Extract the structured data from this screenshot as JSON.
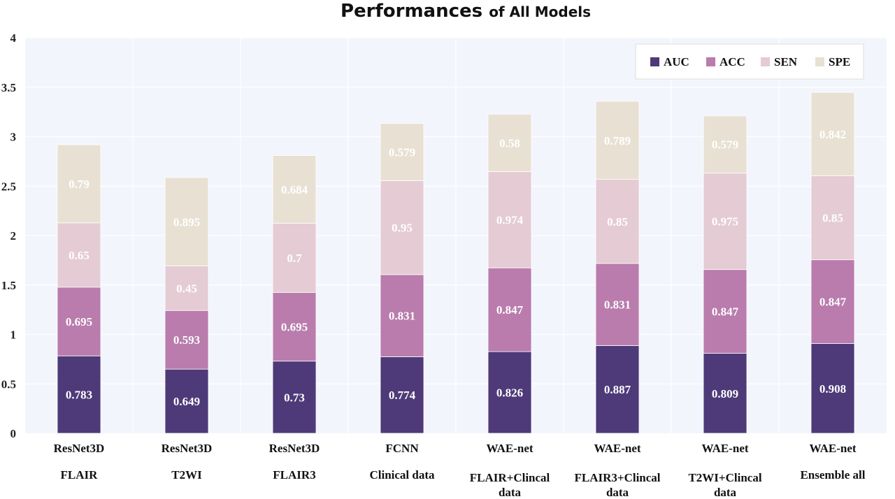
{
  "chart_data": {
    "type": "bar",
    "stacked": true,
    "title": "Performances of All Models",
    "title_parts": [
      "Performances",
      "of All Models"
    ],
    "xlabel": "",
    "ylabel": "",
    "ylim": [
      0,
      4
    ],
    "yticks": [
      "0",
      "0.5",
      "1",
      "1.5",
      "2",
      "2.5",
      "3",
      "3.5",
      "4"
    ],
    "grid": true,
    "legend_position": "top-right",
    "categories": [
      [
        "ResNet3D",
        "FLAIR"
      ],
      [
        "ResNet3D",
        "T2WI"
      ],
      [
        "ResNet3D",
        "FLAIR3"
      ],
      [
        "FCNN",
        "Clinical data"
      ],
      [
        "WAE-net",
        "FLAIR+Clincal",
        "data"
      ],
      [
        "WAE-net",
        "FLAIR3+Clincal",
        "data"
      ],
      [
        "WAE-net",
        "T2WI+Clincal",
        "data"
      ],
      [
        "WAE-net",
        "Ensemble all"
      ]
    ],
    "series": [
      {
        "name": "AUC",
        "color": "#4e3a78",
        "label_color": "#ffffff",
        "values": [
          0.783,
          0.649,
          0.73,
          0.774,
          0.826,
          0.887,
          0.809,
          0.908
        ]
      },
      {
        "name": "ACC",
        "color": "#b97cad",
        "label_color": "#ffffff",
        "values": [
          0.695,
          0.593,
          0.695,
          0.831,
          0.847,
          0.831,
          0.847,
          0.847
        ]
      },
      {
        "name": "SEN",
        "color": "#e4cbd4",
        "label_color": "#ffffff",
        "values": [
          0.65,
          0.45,
          0.7,
          0.95,
          0.974,
          0.85,
          0.975,
          0.85
        ]
      },
      {
        "name": "SPE",
        "color": "#e8e1d3",
        "label_color": "#ffffff",
        "values": [
          0.79,
          0.895,
          0.684,
          0.579,
          0.58,
          0.789,
          0.579,
          0.842
        ]
      }
    ]
  }
}
